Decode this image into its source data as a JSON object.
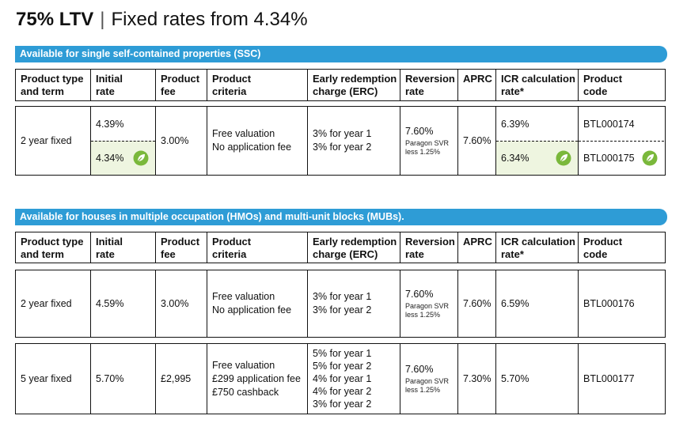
{
  "header": {
    "ltv": "75% LTV",
    "separator": "|",
    "subtitle": "Fixed rates from 4.34%"
  },
  "columns": {
    "c1": [
      "Product type",
      "and term"
    ],
    "c2": [
      "Initial",
      "rate"
    ],
    "c3": [
      "Product",
      "fee"
    ],
    "c4": [
      "Product",
      "criteria"
    ],
    "c5": [
      "Early redemption",
      "charge (ERC)"
    ],
    "c6": [
      "Reversion",
      "rate"
    ],
    "c7": [
      "APRC"
    ],
    "c8": [
      "ICR calculation",
      "rate*"
    ],
    "c9": [
      "Product",
      "code"
    ]
  },
  "colors": {
    "banner": "#2e9cd6",
    "highlight": "#eef5e0",
    "leaf": "#7ab83b"
  },
  "ssc": {
    "banner": "Available for single self-contained properties (SSC)",
    "row": {
      "type": "2 year fixed",
      "rate_top": "4.39%",
      "rate_bottom": "4.34%",
      "fee": "3.00%",
      "criteria": [
        "Free valuation",
        "No application fee"
      ],
      "erc": [
        "3% for year 1",
        "3% for year 2"
      ],
      "reversion": "7.60%",
      "reversion_note": [
        "Paragon SVR",
        "less 1.25%"
      ],
      "aprc": "7.60%",
      "icr_top": "6.39%",
      "icr_bottom": "6.34%",
      "code_top": "BTL000174",
      "code_bottom": "BTL000175",
      "icon": "leaf-icon"
    }
  },
  "hmo": {
    "banner": "Available for houses in multiple occupation (HMOs) and multi-unit blocks (MUBs).",
    "rows": [
      {
        "type": "2 year fixed",
        "rate": "4.59%",
        "fee": "3.00%",
        "criteria": [
          "Free valuation",
          "No application fee"
        ],
        "erc": [
          "3% for year 1",
          "3% for year 2"
        ],
        "reversion": "7.60%",
        "reversion_note": [
          "Paragon SVR",
          "less 1.25%"
        ],
        "aprc": "7.60%",
        "icr": "6.59%",
        "code": "BTL000176"
      },
      {
        "type": "5 year fixed",
        "rate": "5.70%",
        "fee": "£2,995",
        "criteria": [
          "Free valuation",
          "£299 application fee",
          "£750 cashback"
        ],
        "erc": [
          "5% for year 1",
          "5% for year 2",
          "4% for year 1",
          "4% for year 2",
          "3% for year 2"
        ],
        "reversion": "7.60%",
        "reversion_note": [
          "Paragon SVR",
          "less 1.25%"
        ],
        "aprc": "7.30%",
        "icr": "5.70%",
        "code": "BTL000177"
      }
    ]
  }
}
